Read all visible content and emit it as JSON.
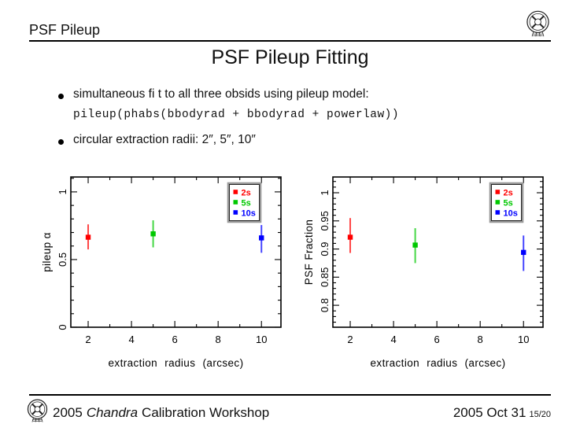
{
  "header": {
    "title": "PSF Pileup"
  },
  "slide": {
    "title": "PSF Pileup Fitting",
    "bullet1_text": "simultaneous fi t to all three obsids using pileup model:",
    "bullet1_code": "pileup(phabs(bbodyrad + bbodyrad + powerlaw))",
    "bullet2_text": "circular extraction radii: 2″, 5″, 10″"
  },
  "footer": {
    "prefix": "2005",
    "chandra": "Chandra",
    "suffix": "Calibration Workshop",
    "date": "2005 Oct 31",
    "page": "15/20"
  },
  "icons": {
    "top_logo": "chandra-emblem",
    "bottom_logo": "chandra-emblem"
  },
  "colors": {
    "red": "#ff0000",
    "green": "#00c800",
    "blue": "#0000ff",
    "axis": "#000000",
    "legend_border_outer": "#999999",
    "legend_border_inner": "#222222"
  },
  "chart_data": [
    {
      "type": "scatter",
      "name": "pileup-alpha",
      "xlabel": "extraction radius (arcsec)",
      "ylabel": "pileup α",
      "xlim": [
        1.2,
        10.9
      ],
      "ylim": [
        0,
        1.11
      ],
      "x_major_ticks": [
        2,
        4,
        6,
        8,
        10
      ],
      "x_major_labels": [
        "2",
        "4",
        "6",
        "8",
        "10"
      ],
      "x_minor_ticks": [
        3,
        5,
        7,
        9
      ],
      "y_major_ticks": [
        0,
        0.5,
        1
      ],
      "y_major_labels": [
        "0",
        "0.5",
        "1"
      ],
      "y_minor_step": 0.1,
      "grid": false,
      "legend_position": "top-right",
      "series": [
        {
          "name": "2s",
          "color": "#ff0000",
          "x": 2,
          "y": 0.665,
          "y_lo": 0.575,
          "y_hi": 0.76
        },
        {
          "name": "5s",
          "color": "#00c800",
          "x": 5,
          "y": 0.69,
          "y_lo": 0.59,
          "y_hi": 0.79
        },
        {
          "name": "10s",
          "color": "#0000ff",
          "x": 10,
          "y": 0.66,
          "y_lo": 0.55,
          "y_hi": 0.755
        }
      ]
    },
    {
      "type": "scatter",
      "name": "psf-fraction",
      "xlabel": "extraction radius (arcsec)",
      "ylabel": "PSF Fraction",
      "xlim": [
        1.2,
        10.9
      ],
      "ylim": [
        0.761,
        1.028
      ],
      "x_major_ticks": [
        2,
        4,
        6,
        8,
        10
      ],
      "x_major_labels": [
        "2",
        "4",
        "6",
        "8",
        "10"
      ],
      "x_minor_ticks": [
        3,
        5,
        7,
        9
      ],
      "y_major_ticks": [
        0.8,
        0.85,
        0.9,
        0.95,
        1
      ],
      "y_major_labels": [
        "0.8",
        "0.85",
        "0.9",
        "0.95",
        "1"
      ],
      "y_minor_step": 0.01,
      "grid": false,
      "legend_position": "top-right",
      "series": [
        {
          "name": "2s",
          "color": "#ff0000",
          "x": 2,
          "y": 0.921,
          "y_lo": 0.893,
          "y_hi": 0.955
        },
        {
          "name": "5s",
          "color": "#00c800",
          "x": 5,
          "y": 0.907,
          "y_lo": 0.875,
          "y_hi": 0.937
        },
        {
          "name": "10s",
          "color": "#0000ff",
          "x": 10,
          "y": 0.894,
          "y_lo": 0.861,
          "y_hi": 0.924
        }
      ]
    }
  ]
}
